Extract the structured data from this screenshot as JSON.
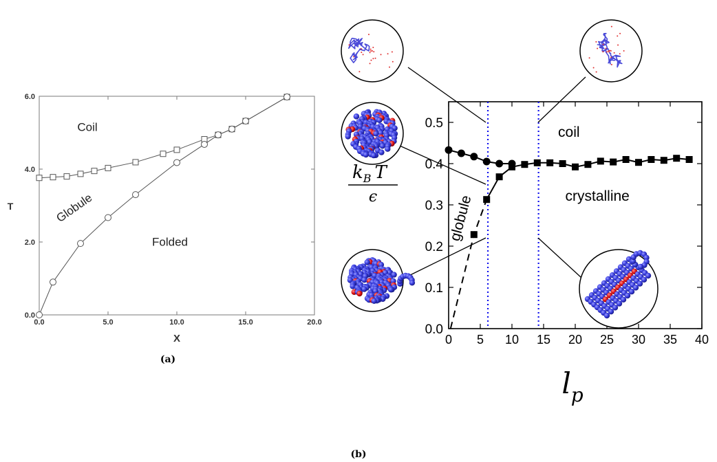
{
  "chart_data": [
    {
      "type": "line",
      "caption": "(a)",
      "xlabel": "X",
      "ylabel": "T",
      "xlim": [
        0,
        20
      ],
      "ylim": [
        0,
        6
      ],
      "xticks": [
        "0.0",
        "5.0",
        "10.0",
        "15.0",
        "20.0"
      ],
      "yticks": [
        "0.0",
        "2.0",
        "4.0",
        "6.0"
      ],
      "grid": false,
      "series": [
        {
          "marker": "square",
          "x": [
            0,
            1,
            2,
            3,
            4,
            5,
            7,
            9,
            10,
            12,
            13,
            14,
            15,
            18
          ],
          "y": [
            3.76,
            3.78,
            3.8,
            3.87,
            3.95,
            4.03,
            4.19,
            4.42,
            4.53,
            4.82,
            4.94,
            5.1,
            5.32,
            5.98
          ]
        },
        {
          "marker": "circle",
          "x": [
            0,
            1,
            3,
            5,
            7,
            10,
            12,
            13,
            14,
            15,
            18
          ],
          "y": [
            0.0,
            0.9,
            1.96,
            2.67,
            3.3,
            4.18,
            4.68,
            4.94,
            5.1,
            5.32,
            5.98
          ]
        }
      ],
      "annotations": [
        {
          "text": "Coil",
          "x": 3.5,
          "y": 5.05
        },
        {
          "text": "Globule",
          "x": 2.7,
          "y": 2.85,
          "rotate": -35
        },
        {
          "text": "Folded",
          "x": 9.5,
          "y": 1.9
        }
      ]
    },
    {
      "type": "line",
      "caption": "(b)",
      "xlabel_main": "l",
      "xlabel_sub": "p",
      "ylabel_num_main": "k",
      "ylabel_num_sub": "B",
      "ylabel_num_rest": "T",
      "ylabel_den": "ϵ",
      "xlim": [
        0,
        40
      ],
      "ylim": [
        0,
        0.55
      ],
      "xticks": [
        "0",
        "5",
        "10",
        "15",
        "20",
        "25",
        "30",
        "35",
        "40"
      ],
      "yticks": [
        "0.0",
        "0.1",
        "0.2",
        "0.3",
        "0.4",
        "0.5"
      ],
      "grid": false,
      "series": [
        {
          "marker": "circle",
          "style": "solid",
          "x": [
            0,
            2,
            4,
            6,
            8,
            10
          ],
          "y": [
            0.433,
            0.425,
            0.417,
            0.405,
            0.4,
            0.4
          ]
        },
        {
          "marker": "square",
          "style": "solid",
          "x": [
            6,
            8,
            10,
            12,
            14,
            16,
            18,
            20,
            22,
            24,
            26,
            28,
            30,
            32,
            34,
            36,
            38
          ],
          "y": [
            0.313,
            0.368,
            0.392,
            0.398,
            0.402,
            0.402,
            0.4,
            0.392,
            0.398,
            0.406,
            0.404,
            0.41,
            0.403,
            0.41,
            0.408,
            0.413,
            0.41
          ]
        },
        {
          "marker": "square",
          "style": "dashed",
          "x": [
            0.3,
            4,
            6
          ],
          "y": [
            0.0,
            0.228,
            0.313
          ]
        }
      ],
      "vlines": [
        6.2,
        14.2
      ],
      "annotations": [
        {
          "text": "coil",
          "x": 19,
          "y": 0.465
        },
        {
          "text": "crystalline",
          "x": 23.5,
          "y": 0.31
        },
        {
          "text": "globule",
          "x": 2.6,
          "y": 0.265,
          "rotate": -75
        }
      ]
    }
  ]
}
